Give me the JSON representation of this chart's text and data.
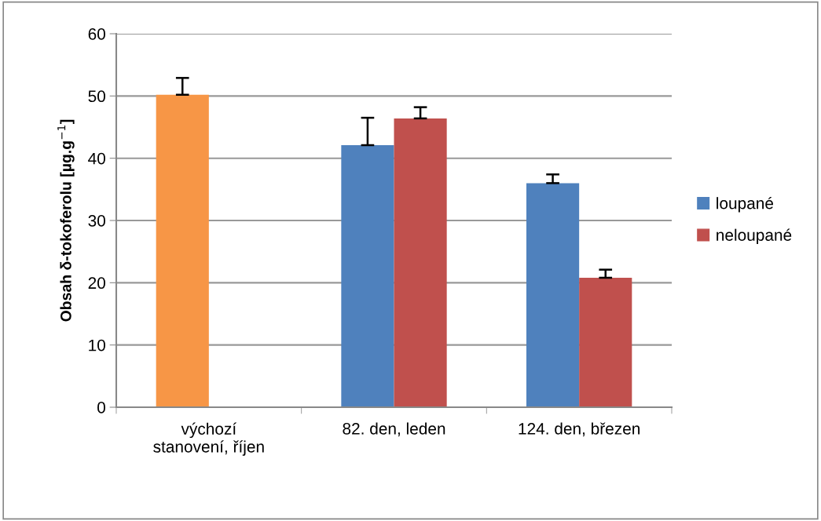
{
  "chart_data": {
    "type": "bar",
    "ylabel": "Obsah δ-tokoferolu [µg.g$^{−1}$]",
    "categories": [
      "výchozí\nstanovení, říjen",
      "82. den, leden",
      "124. den, březen"
    ],
    "series": [
      {
        "name": "loupané",
        "color": "#4f81bd",
        "colors": [
          "#f79646",
          "#4f81bd",
          "#4f81bd"
        ],
        "values": [
          50.2,
          42.1,
          36.0
        ],
        "errors": [
          [
            50.2,
            52.9
          ],
          [
            42.1,
            46.5
          ],
          [
            36.0,
            37.4
          ]
        ]
      },
      {
        "name": "neloupané",
        "color": "#c0504d",
        "values": [
          null,
          46.4,
          20.8
        ],
        "errors": [
          null,
          [
            46.4,
            48.2
          ],
          [
            20.8,
            22.1
          ]
        ]
      }
    ],
    "ylim": [
      0,
      60
    ],
    "yticks": [
      0,
      10,
      20,
      30,
      40,
      50,
      60
    ],
    "grid": "y",
    "legend": "right"
  }
}
